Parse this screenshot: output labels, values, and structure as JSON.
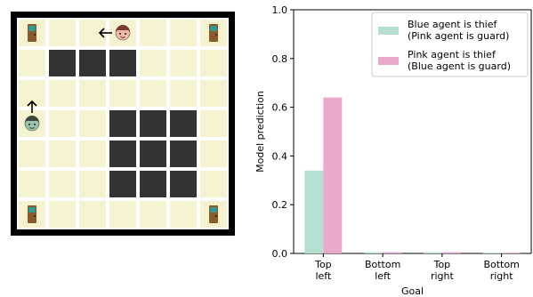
{
  "gridworld": {
    "rows": 7,
    "cols": 7,
    "colors": {
      "cell": "#f5f2cf",
      "wall": "#333333",
      "gap": "#ffffff",
      "border": "#000000",
      "door": "#8b5a2b",
      "door_window": "#2a9d9d"
    },
    "walls": [
      [
        1,
        1
      ],
      [
        1,
        2
      ],
      [
        1,
        3
      ],
      [
        3,
        3
      ],
      [
        3,
        4
      ],
      [
        3,
        5
      ],
      [
        4,
        3
      ],
      [
        4,
        4
      ],
      [
        4,
        5
      ],
      [
        5,
        3
      ],
      [
        5,
        4
      ],
      [
        5,
        5
      ]
    ],
    "doors": [
      {
        "name": "top-left-door",
        "row": 0,
        "col": 0
      },
      {
        "name": "top-right-door",
        "row": 0,
        "col": 6
      },
      {
        "name": "bottom-left-door",
        "row": 6,
        "col": 0
      },
      {
        "name": "bottom-right-door",
        "row": 6,
        "col": 6
      }
    ],
    "agents": [
      {
        "name": "pink-agent",
        "row": 0,
        "col": 3,
        "arrow": "left",
        "face": "#f2b8a6",
        "hair": "#7a3b2e"
      },
      {
        "name": "blue-agent",
        "row": 3,
        "col": 0,
        "arrow": "up",
        "face": "#9cc2a8",
        "hair": "#3c4a3c"
      }
    ]
  },
  "chart_data": {
    "type": "bar",
    "categories": [
      "Top\nleft",
      "Bottom\nleft",
      "Top\nright",
      "Bottom\nright"
    ],
    "series": [
      {
        "name": "Blue agent is thief\n(Pink agent is guard)",
        "color": "#b5e0cf",
        "values": [
          0.34,
          0.005,
          0.005,
          0.003
        ]
      },
      {
        "name": "Pink agent is thief\n(Blue agent is guard)",
        "color": "#e8a9cd",
        "values": [
          0.64,
          0.005,
          0.005,
          0.003
        ]
      }
    ],
    "xlabel": "Goal",
    "ylabel": "Model prediction",
    "ylim": [
      0,
      1.0
    ],
    "yticks": [
      0.0,
      0.2,
      0.4,
      0.6,
      0.8,
      1.0
    ],
    "grid": false,
    "legend_position": "top-right"
  }
}
